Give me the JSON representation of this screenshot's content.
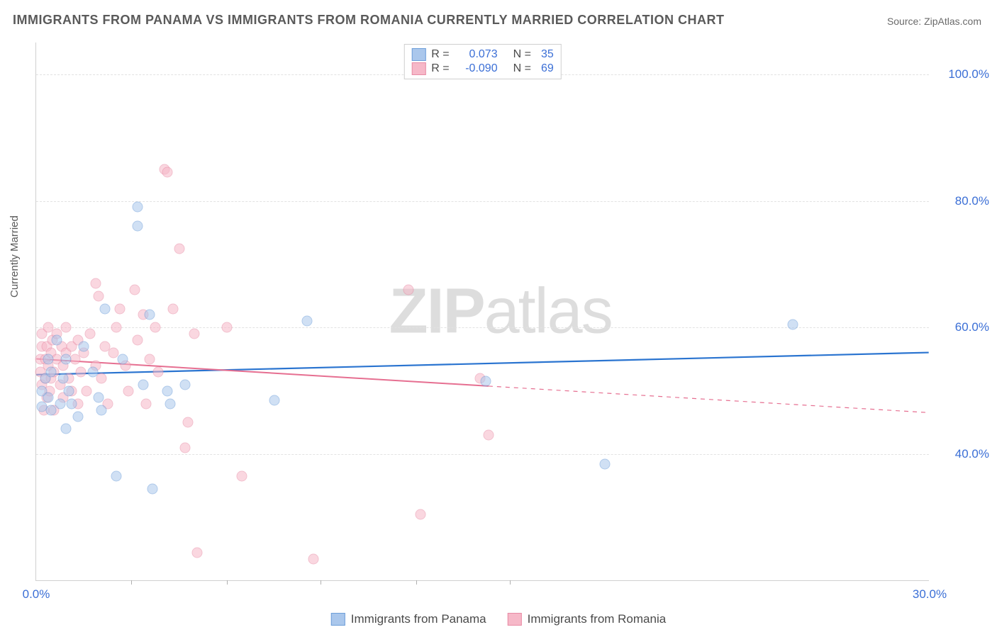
{
  "title": "IMMIGRANTS FROM PANAMA VS IMMIGRANTS FROM ROMANIA CURRENTLY MARRIED CORRELATION CHART",
  "source": "Source: ZipAtlas.com",
  "watermark_a": "ZIP",
  "watermark_b": "atlas",
  "ylabel": "Currently Married",
  "chart": {
    "type": "scatter",
    "xlim": [
      0,
      30
    ],
    "ylim": [
      20,
      105
    ],
    "background_color": "#ffffff",
    "grid_color": "#e2e2e2",
    "axis_color": "#d0d0d0",
    "tick_label_color": "#3b6fd6",
    "tick_fontsize": 17,
    "yticks": [
      {
        "v": 40,
        "label": "40.0%"
      },
      {
        "v": 60,
        "label": "60.0%"
      },
      {
        "v": 80,
        "label": "80.0%"
      },
      {
        "v": 100,
        "label": "100.0%"
      }
    ],
    "xticks": [
      {
        "v": 0,
        "label": "0.0%"
      },
      {
        "v": 30,
        "label": "30.0%"
      }
    ],
    "xtick_marks": [
      3.2,
      6.4,
      9.55,
      12.75,
      15.9
    ],
    "marker_radius": 7.5,
    "marker_stroke_width": 1.2,
    "series": [
      {
        "name": "Immigrants from Panama",
        "fill": "#aac7ec",
        "stroke": "#6d9ed9",
        "fill_opacity": 0.55,
        "R": "0.073",
        "N": "35",
        "trend": {
          "y_at_xmin": 52.5,
          "y_at_xmax": 56.0,
          "solid_until_x": 30,
          "color": "#2a74d0",
          "width": 2.2
        },
        "points": [
          [
            0.2,
            47.5
          ],
          [
            0.2,
            50
          ],
          [
            0.3,
            52
          ],
          [
            0.4,
            49
          ],
          [
            0.4,
            55
          ],
          [
            0.5,
            47
          ],
          [
            0.5,
            53
          ],
          [
            0.7,
            58
          ],
          [
            0.8,
            48
          ],
          [
            0.9,
            52
          ],
          [
            1.0,
            55
          ],
          [
            1.0,
            44
          ],
          [
            1.1,
            50
          ],
          [
            1.2,
            48
          ],
          [
            1.4,
            46
          ],
          [
            1.6,
            57
          ],
          [
            1.9,
            53
          ],
          [
            2.1,
            49
          ],
          [
            2.2,
            47
          ],
          [
            2.3,
            63
          ],
          [
            2.7,
            36.5
          ],
          [
            2.9,
            55
          ],
          [
            3.4,
            79
          ],
          [
            3.4,
            76
          ],
          [
            3.6,
            51
          ],
          [
            3.8,
            62
          ],
          [
            3.9,
            34.5
          ],
          [
            4.4,
            50
          ],
          [
            4.5,
            48
          ],
          [
            5.0,
            51
          ],
          [
            8.0,
            48.5
          ],
          [
            9.1,
            61
          ],
          [
            15.1,
            51.5
          ],
          [
            19.1,
            38.5
          ],
          [
            25.4,
            60.5
          ]
        ]
      },
      {
        "name": "Immigrants from Romania",
        "fill": "#f6b8c8",
        "stroke": "#e88ca5",
        "fill_opacity": 0.55,
        "R": "-0.090",
        "N": "69",
        "trend": {
          "y_at_xmin": 55.0,
          "y_at_xmax": 46.5,
          "solid_until_x": 15.2,
          "color": "#e66f91",
          "width": 2.0
        },
        "points": [
          [
            0.15,
            53
          ],
          [
            0.15,
            55
          ],
          [
            0.18,
            57
          ],
          [
            0.2,
            51
          ],
          [
            0.2,
            59
          ],
          [
            0.25,
            47
          ],
          [
            0.3,
            55
          ],
          [
            0.3,
            52
          ],
          [
            0.35,
            57
          ],
          [
            0.35,
            49
          ],
          [
            0.4,
            60
          ],
          [
            0.4,
            54
          ],
          [
            0.45,
            50
          ],
          [
            0.5,
            56
          ],
          [
            0.5,
            52
          ],
          [
            0.55,
            58
          ],
          [
            0.6,
            53
          ],
          [
            0.6,
            47
          ],
          [
            0.7,
            55
          ],
          [
            0.7,
            59
          ],
          [
            0.8,
            51
          ],
          [
            0.85,
            57
          ],
          [
            0.9,
            54
          ],
          [
            0.9,
            49
          ],
          [
            1.0,
            56
          ],
          [
            1.0,
            60
          ],
          [
            1.1,
            52
          ],
          [
            1.2,
            57
          ],
          [
            1.2,
            50
          ],
          [
            1.3,
            55
          ],
          [
            1.4,
            58
          ],
          [
            1.4,
            48
          ],
          [
            1.5,
            53
          ],
          [
            1.6,
            56
          ],
          [
            1.7,
            50
          ],
          [
            1.8,
            59
          ],
          [
            2.0,
            54
          ],
          [
            2.0,
            67
          ],
          [
            2.1,
            65
          ],
          [
            2.2,
            52
          ],
          [
            2.3,
            57
          ],
          [
            2.4,
            48
          ],
          [
            2.6,
            56
          ],
          [
            2.7,
            60
          ],
          [
            2.8,
            63
          ],
          [
            3.0,
            54
          ],
          [
            3.1,
            50
          ],
          [
            3.3,
            66
          ],
          [
            3.4,
            58
          ],
          [
            3.6,
            62
          ],
          [
            3.7,
            48
          ],
          [
            3.8,
            55
          ],
          [
            4.0,
            60
          ],
          [
            4.1,
            53
          ],
          [
            4.3,
            85
          ],
          [
            4.4,
            84.5
          ],
          [
            4.6,
            63
          ],
          [
            4.8,
            72.5
          ],
          [
            5.0,
            41
          ],
          [
            5.1,
            45
          ],
          [
            5.3,
            59
          ],
          [
            5.4,
            24.5
          ],
          [
            6.4,
            60
          ],
          [
            6.9,
            36.5
          ],
          [
            9.3,
            23.5
          ],
          [
            12.5,
            66
          ],
          [
            12.9,
            30.5
          ],
          [
            14.9,
            52
          ],
          [
            15.2,
            43
          ]
        ]
      }
    ]
  },
  "legend_top": {
    "rows": [
      {
        "swatch_fill": "#aac7ec",
        "swatch_stroke": "#6d9ed9",
        "r_label": "R =",
        "r_val": "0.073",
        "n_label": "N =",
        "n_val": "35"
      },
      {
        "swatch_fill": "#f6b8c8",
        "swatch_stroke": "#e88ca5",
        "r_label": "R =",
        "r_val": "-0.090",
        "n_label": "N =",
        "n_val": "69"
      }
    ]
  },
  "legend_bottom": {
    "items": [
      {
        "swatch_fill": "#aac7ec",
        "swatch_stroke": "#6d9ed9",
        "label": "Immigrants from Panama"
      },
      {
        "swatch_fill": "#f6b8c8",
        "swatch_stroke": "#e88ca5",
        "label": "Immigrants from Romania"
      }
    ]
  }
}
